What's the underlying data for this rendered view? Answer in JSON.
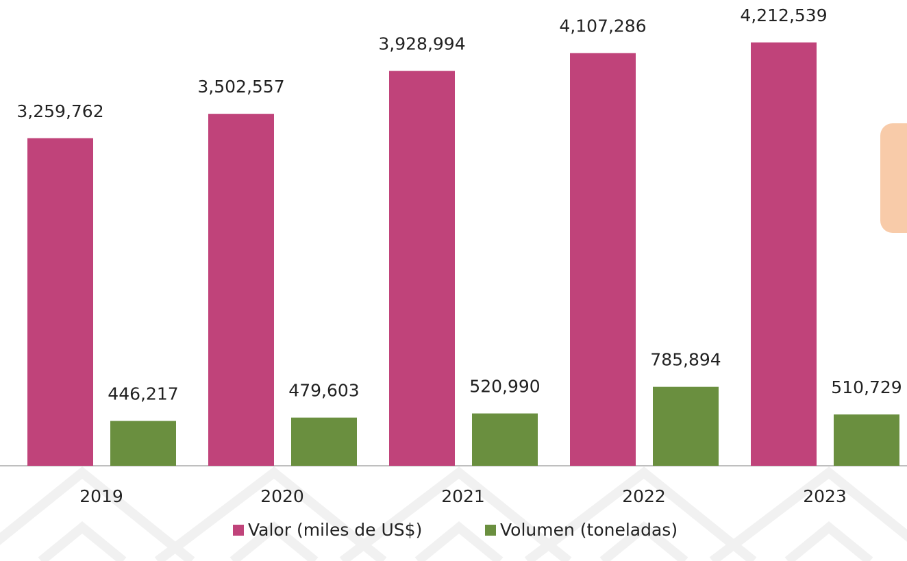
{
  "chart_data": {
    "type": "bar",
    "categories": [
      "2019",
      "2020",
      "2021",
      "2022",
      "2023"
    ],
    "series": [
      {
        "name": "Valor (miles de US$)",
        "color": "#c0437a",
        "values": [
          3259762,
          3502557,
          3928994,
          4107286,
          4212539
        ],
        "value_labels": [
          "3,259,762",
          "3,502,557",
          "3,928,994",
          "4,107,286",
          "4,212,539"
        ]
      },
      {
        "name": "Volumen (toneladas)",
        "color": "#6a8f3f",
        "values": [
          446217,
          479603,
          520990,
          785894,
          510729
        ],
        "value_labels": [
          "446,217",
          "479,603",
          "520,990",
          "785,894",
          "510,729"
        ]
      }
    ],
    "legend": "bottom"
  }
}
